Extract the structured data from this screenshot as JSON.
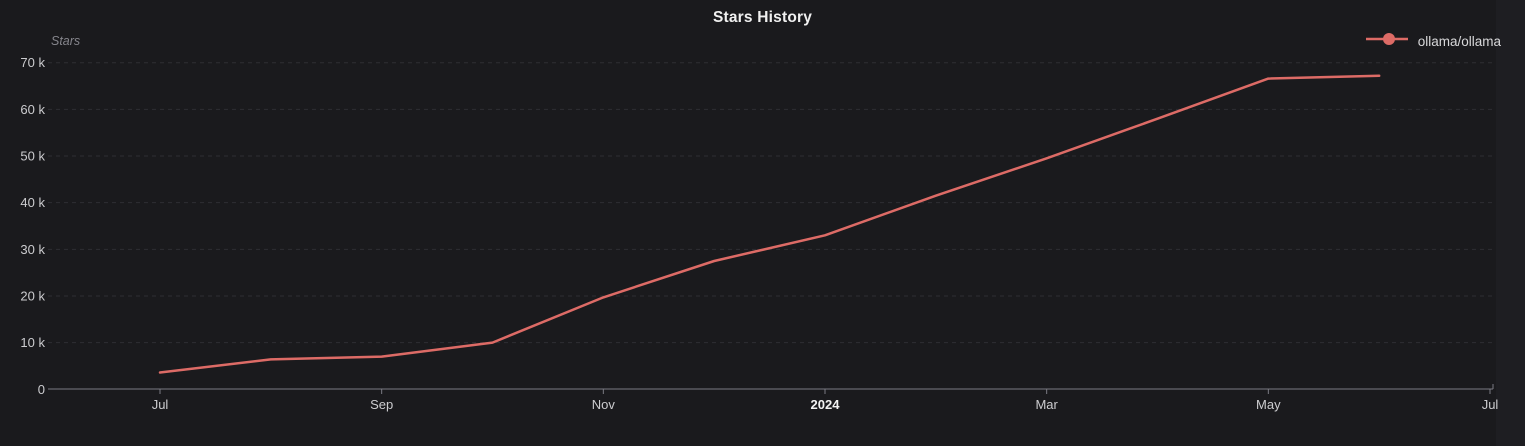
{
  "chart_data": {
    "type": "line",
    "title": "Stars History",
    "ylabel": "Stars",
    "background": "#1a1a1d",
    "grid": "dashed-horizontal",
    "legend": {
      "position": "top-right",
      "entries": [
        "ollama/ollama"
      ]
    },
    "ylim": [
      0,
      70000
    ],
    "y_ticks": [
      {
        "value": 0,
        "label": "0"
      },
      {
        "value": 10000,
        "label": "10 k"
      },
      {
        "value": 20000,
        "label": "20 k"
      },
      {
        "value": 30000,
        "label": "30 k"
      },
      {
        "value": 40000,
        "label": "40 k"
      },
      {
        "value": 50000,
        "label": "50 k"
      },
      {
        "value": 60000,
        "label": "60 k"
      },
      {
        "value": 70000,
        "label": "70 k"
      }
    ],
    "x_ticks": [
      {
        "label": "Jul",
        "month_index": 0,
        "bold": false
      },
      {
        "label": "Sep",
        "month_index": 2,
        "bold": false
      },
      {
        "label": "Nov",
        "month_index": 4,
        "bold": false
      },
      {
        "label": "2024",
        "month_index": 6,
        "bold": true
      },
      {
        "label": "Mar",
        "month_index": 8,
        "bold": false
      },
      {
        "label": "May",
        "month_index": 10,
        "bold": false
      },
      {
        "label": "Jul",
        "month_index": 12,
        "bold": false
      }
    ],
    "series": [
      {
        "name": "ollama/ollama",
        "color": "#dd6b66",
        "x": [
          "2023-07",
          "2023-08",
          "2023-09",
          "2023-10",
          "2023-11",
          "2023-12",
          "2024-01",
          "2024-02",
          "2024-03",
          "2024-04",
          "2024-05",
          "2024-06"
        ],
        "values": [
          3600,
          6400,
          7000,
          10000,
          19700,
          27500,
          33000,
          41500,
          49500,
          58000,
          66600,
          67200
        ]
      }
    ]
  },
  "colors": {
    "axis_line": "#7b7b83",
    "grid_line": "#2e2e33",
    "tick_label": "#cccccf",
    "tick_label_bold": "#f2f2f2"
  }
}
